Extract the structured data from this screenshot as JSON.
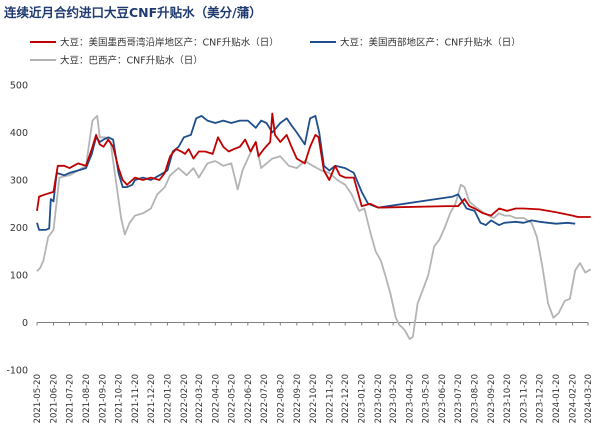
{
  "chart_data": {
    "type": "line",
    "title": "连续近月合约进口大豆CNF升贴水（美分/蒲）",
    "xlabel": "",
    "ylabel": "",
    "ylim": [
      -100,
      500
    ],
    "yticks": [
      -100,
      0,
      100,
      200,
      300,
      400,
      500
    ],
    "grid": false,
    "legend_position": "top",
    "x_tick_labels": [
      "2021-05-20",
      "2021-06-20",
      "2021-07-20",
      "2021-08-20",
      "2021-09-20",
      "2021-10-20",
      "2021-11-20",
      "2021-12-20",
      "2022-01-20",
      "2022-02-20",
      "2022-03-20",
      "2022-04-20",
      "2022-05-20",
      "2022-06-20",
      "2022-07-20",
      "2022-08-20",
      "2022-09-20",
      "2022-10-20",
      "2022-11-20",
      "2022-12-20",
      "2023-01-20",
      "2023-02-20",
      "2023-03-20",
      "2023-04-20",
      "2023-05-20",
      "2023-06-20",
      "2023-07-20",
      "2023-08-20",
      "2023-09-20",
      "2023-10-20",
      "2023-11-20",
      "2023-12-20",
      "2024-01-20",
      "2024-02-20",
      "2024-03-20"
    ],
    "series": [
      {
        "name": "大豆：美国墨西哥湾沿岸地区产：CNF升贴水（日）",
        "color": "#c00000",
        "points": [
          [
            "2021-05-20",
            235
          ],
          [
            "2021-05-24",
            265
          ],
          [
            "2021-06-05",
            270
          ],
          [
            "2021-06-20",
            275
          ],
          [
            "2021-06-28",
            330
          ],
          [
            "2021-07-10",
            330
          ],
          [
            "2021-07-20",
            325
          ],
          [
            "2021-08-05",
            335
          ],
          [
            "2021-08-20",
            330
          ],
          [
            "2021-08-31",
            365
          ],
          [
            "2021-09-08",
            395
          ],
          [
            "2021-09-15",
            375
          ],
          [
            "2021-09-22",
            370
          ],
          [
            "2021-10-01",
            385
          ],
          [
            "2021-10-10",
            370
          ],
          [
            "2021-10-20",
            325
          ],
          [
            "2021-10-28",
            300
          ],
          [
            "2021-11-05",
            290
          ],
          [
            "2021-11-15",
            300
          ],
          [
            "2021-11-20",
            305
          ],
          [
            "2021-12-05",
            300
          ],
          [
            "2021-12-20",
            305
          ],
          [
            "2022-01-05",
            300
          ],
          [
            "2022-01-15",
            315
          ],
          [
            "2022-01-25",
            350
          ],
          [
            "2022-02-05",
            365
          ],
          [
            "2022-02-15",
            360
          ],
          [
            "2022-02-22",
            355
          ],
          [
            "2022-03-01",
            365
          ],
          [
            "2022-03-10",
            345
          ],
          [
            "2022-03-20",
            360
          ],
          [
            "2022-04-01",
            360
          ],
          [
            "2022-04-15",
            355
          ],
          [
            "2022-04-25",
            390
          ],
          [
            "2022-05-05",
            370
          ],
          [
            "2022-05-15",
            360
          ],
          [
            "2022-05-25",
            365
          ],
          [
            "2022-06-05",
            370
          ],
          [
            "2022-06-15",
            385
          ],
          [
            "2022-06-25",
            360
          ],
          [
            "2022-07-05",
            380
          ],
          [
            "2022-07-10",
            350
          ],
          [
            "2022-07-20",
            365
          ],
          [
            "2022-08-01",
            380
          ],
          [
            "2022-08-05",
            440
          ],
          [
            "2022-08-10",
            395
          ],
          [
            "2022-08-20",
            380
          ],
          [
            "2022-09-01",
            395
          ],
          [
            "2022-09-10",
            370
          ],
          [
            "2022-09-20",
            345
          ],
          [
            "2022-10-05",
            335
          ],
          [
            "2022-10-15",
            370
          ],
          [
            "2022-10-25",
            395
          ],
          [
            "2022-10-31",
            390
          ],
          [
            "2022-11-10",
            320
          ],
          [
            "2022-11-20",
            300
          ],
          [
            "2022-12-01",
            330
          ],
          [
            "2022-12-10",
            310
          ],
          [
            "2022-12-20",
            305
          ],
          [
            "2023-01-05",
            305
          ],
          [
            "2023-01-20",
            245
          ],
          [
            "2023-02-05",
            250
          ],
          [
            "2023-02-20",
            242
          ],
          [
            "2023-07-01",
            245
          ],
          [
            "2023-07-20",
            245
          ],
          [
            "2023-08-01",
            260
          ],
          [
            "2023-08-10",
            245
          ],
          [
            "2023-08-20",
            240
          ],
          [
            "2023-09-05",
            230
          ],
          [
            "2023-09-20",
            225
          ],
          [
            "2023-10-05",
            240
          ],
          [
            "2023-10-20",
            235
          ],
          [
            "2023-11-05",
            240
          ],
          [
            "2023-11-20",
            240
          ],
          [
            "2023-12-20",
            238
          ],
          [
            "2024-01-20",
            232
          ],
          [
            "2024-02-20",
            225
          ],
          [
            "2024-03-01",
            222
          ],
          [
            "2024-03-25",
            222
          ]
        ]
      },
      {
        "name": "大豆：美国西部地区产：CNF升贴水（日）",
        "color": "#1f4e8c",
        "points": [
          [
            "2021-05-20",
            210
          ],
          [
            "2021-05-24",
            195
          ],
          [
            "2021-06-05",
            195
          ],
          [
            "2021-06-12",
            198
          ],
          [
            "2021-06-15",
            260
          ],
          [
            "2021-06-20",
            255
          ],
          [
            "2021-06-26",
            315
          ],
          [
            "2021-07-10",
            310
          ],
          [
            "2021-07-20",
            315
          ],
          [
            "2021-08-05",
            320
          ],
          [
            "2021-08-20",
            325
          ],
          [
            "2021-08-31",
            355
          ],
          [
            "2021-09-08",
            390
          ],
          [
            "2021-09-15",
            380
          ],
          [
            "2021-09-22",
            385
          ],
          [
            "2021-10-01",
            390
          ],
          [
            "2021-10-10",
            385
          ],
          [
            "2021-10-20",
            315
          ],
          [
            "2021-10-28",
            285
          ],
          [
            "2021-11-05",
            285
          ],
          [
            "2021-11-15",
            290
          ],
          [
            "2021-11-20",
            300
          ],
          [
            "2021-12-05",
            305
          ],
          [
            "2021-12-20",
            300
          ],
          [
            "2022-01-05",
            310
          ],
          [
            "2022-01-20",
            320
          ],
          [
            "2022-01-30",
            360
          ],
          [
            "2022-02-10",
            370
          ],
          [
            "2022-02-20",
            390
          ],
          [
            "2022-03-05",
            395
          ],
          [
            "2022-03-15",
            430
          ],
          [
            "2022-03-25",
            435
          ],
          [
            "2022-04-05",
            425
          ],
          [
            "2022-04-20",
            420
          ],
          [
            "2022-05-05",
            425
          ],
          [
            "2022-05-20",
            420
          ],
          [
            "2022-06-05",
            425
          ],
          [
            "2022-06-20",
            425
          ],
          [
            "2022-07-05",
            410
          ],
          [
            "2022-07-15",
            425
          ],
          [
            "2022-07-25",
            420
          ],
          [
            "2022-08-05",
            400
          ],
          [
            "2022-08-20",
            420
          ],
          [
            "2022-09-01",
            430
          ],
          [
            "2022-09-10",
            415
          ],
          [
            "2022-09-20",
            400
          ],
          [
            "2022-10-05",
            375
          ],
          [
            "2022-10-15",
            430
          ],
          [
            "2022-10-25",
            435
          ],
          [
            "2022-11-01",
            400
          ],
          [
            "2022-11-10",
            330
          ],
          [
            "2022-11-20",
            320
          ],
          [
            "2022-12-01",
            330
          ],
          [
            "2022-12-20",
            325
          ],
          [
            "2023-01-05",
            315
          ],
          [
            "2023-01-20",
            275
          ],
          [
            "2023-02-01",
            250
          ],
          [
            "2023-02-20",
            242
          ],
          [
            "2023-07-10",
            265
          ],
          [
            "2023-07-20",
            270
          ],
          [
            "2023-08-05",
            240
          ],
          [
            "2023-08-20",
            235
          ],
          [
            "2023-08-31",
            210
          ],
          [
            "2023-09-10",
            205
          ],
          [
            "2023-09-20",
            215
          ],
          [
            "2023-10-05",
            205
          ],
          [
            "2023-10-15",
            210
          ],
          [
            "2023-11-05",
            212
          ],
          [
            "2023-11-20",
            210
          ],
          [
            "2023-12-05",
            215
          ],
          [
            "2023-12-20",
            212
          ],
          [
            "2024-01-05",
            210
          ],
          [
            "2024-01-20",
            208
          ],
          [
            "2024-02-10",
            210
          ],
          [
            "2024-02-25",
            208
          ]
        ]
      },
      {
        "name": "大豆：巴西产：CNF升贴水（日）",
        "color": "#b4b4b4",
        "points": [
          [
            "2021-05-20",
            108
          ],
          [
            "2021-05-26",
            115
          ],
          [
            "2021-06-01",
            130
          ],
          [
            "2021-06-10",
            180
          ],
          [
            "2021-06-20",
            195
          ],
          [
            "2021-07-01",
            305
          ],
          [
            "2021-07-10",
            308
          ],
          [
            "2021-07-20",
            310
          ],
          [
            "2021-08-05",
            320
          ],
          [
            "2021-08-20",
            330
          ],
          [
            "2021-09-01",
            425
          ],
          [
            "2021-09-10",
            435
          ],
          [
            "2021-09-15",
            390
          ],
          [
            "2021-09-25",
            390
          ],
          [
            "2021-10-05",
            380
          ],
          [
            "2021-10-15",
            300
          ],
          [
            "2021-10-25",
            220
          ],
          [
            "2021-11-01",
            185
          ],
          [
            "2021-11-10",
            210
          ],
          [
            "2021-11-20",
            225
          ],
          [
            "2021-12-05",
            230
          ],
          [
            "2021-12-20",
            240
          ],
          [
            "2022-01-01",
            270
          ],
          [
            "2022-01-15",
            285
          ],
          [
            "2022-01-25",
            310
          ],
          [
            "2022-02-10",
            325
          ],
          [
            "2022-02-25",
            310
          ],
          [
            "2022-03-10",
            325
          ],
          [
            "2022-03-20",
            305
          ],
          [
            "2022-04-05",
            335
          ],
          [
            "2022-04-20",
            340
          ],
          [
            "2022-05-05",
            330
          ],
          [
            "2022-05-20",
            335
          ],
          [
            "2022-06-01",
            280
          ],
          [
            "2022-06-10",
            320
          ],
          [
            "2022-06-20",
            345
          ],
          [
            "2022-07-05",
            380
          ],
          [
            "2022-07-15",
            325
          ],
          [
            "2022-07-25",
            335
          ],
          [
            "2022-08-05",
            345
          ],
          [
            "2022-08-20",
            350
          ],
          [
            "2022-09-05",
            330
          ],
          [
            "2022-09-20",
            325
          ],
          [
            "2022-10-05",
            340
          ],
          [
            "2022-10-20",
            330
          ],
          [
            "2022-11-05",
            320
          ],
          [
            "2022-11-20",
            315
          ],
          [
            "2022-12-05",
            300
          ],
          [
            "2022-12-20",
            290
          ],
          [
            "2023-01-01",
            270
          ],
          [
            "2023-01-15",
            235
          ],
          [
            "2023-01-25",
            240
          ],
          [
            "2023-02-05",
            190
          ],
          [
            "2023-02-15",
            150
          ],
          [
            "2023-02-25",
            130
          ],
          [
            "2023-03-05",
            100
          ],
          [
            "2023-03-15",
            60
          ],
          [
            "2023-03-25",
            10
          ],
          [
            "2023-04-01",
            -5
          ],
          [
            "2023-04-10",
            -15
          ],
          [
            "2023-04-20",
            -35
          ],
          [
            "2023-04-26",
            -30
          ],
          [
            "2023-05-05",
            40
          ],
          [
            "2023-05-15",
            70
          ],
          [
            "2023-05-25",
            100
          ],
          [
            "2023-06-05",
            160
          ],
          [
            "2023-06-15",
            175
          ],
          [
            "2023-06-25",
            200
          ],
          [
            "2023-07-05",
            230
          ],
          [
            "2023-07-15",
            250
          ],
          [
            "2023-07-25",
            290
          ],
          [
            "2023-08-01",
            285
          ],
          [
            "2023-08-10",
            255
          ],
          [
            "2023-08-20",
            245
          ],
          [
            "2023-09-01",
            235
          ],
          [
            "2023-09-15",
            225
          ],
          [
            "2023-09-25",
            220
          ],
          [
            "2023-10-05",
            230
          ],
          [
            "2023-10-15",
            225
          ],
          [
            "2023-10-25",
            225
          ],
          [
            "2023-11-05",
            220
          ],
          [
            "2023-11-20",
            220
          ],
          [
            "2023-12-05",
            210
          ],
          [
            "2023-12-15",
            180
          ],
          [
            "2023-12-25",
            120
          ],
          [
            "2024-01-05",
            40
          ],
          [
            "2024-01-15",
            10
          ],
          [
            "2024-01-25",
            20
          ],
          [
            "2024-02-05",
            45
          ],
          [
            "2024-02-15",
            50
          ],
          [
            "2024-02-25",
            110
          ],
          [
            "2024-03-05",
            125
          ],
          [
            "2024-03-15",
            105
          ],
          [
            "2024-03-25",
            112
          ]
        ]
      }
    ]
  }
}
